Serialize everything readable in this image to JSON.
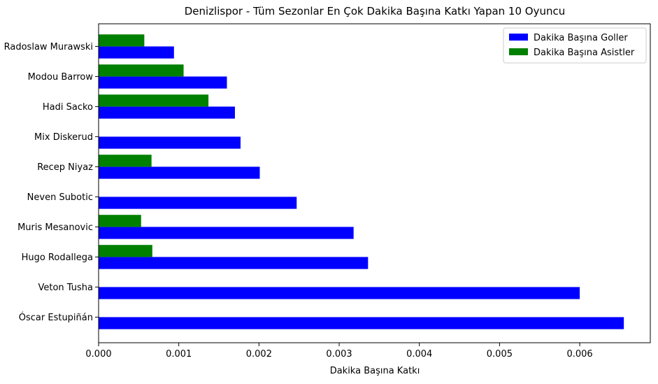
{
  "chart_data": {
    "type": "bar",
    "orientation": "horizontal",
    "title": "Denizlispor - Tüm Sezonlar En Çok Dakika Başına Katkı Yapan 10 Oyuncu",
    "xlabel": "Dakika Başına Katkı",
    "ylabel": "",
    "xlim": [
      0,
      0.00688
    ],
    "x_ticks": [
      "0.000",
      "0.001",
      "0.002",
      "0.003",
      "0.004",
      "0.005",
      "0.006"
    ],
    "categories": [
      "Óscar Estupiñán",
      "Veton Tusha",
      "Hugo Rodallega",
      "Muris Mesanovic",
      "Neven Subotic",
      "Recep Niyaz",
      "Mix Diskerud",
      "Hadi Sacko",
      "Modou Barrow",
      "Radoslaw Murawski"
    ],
    "series": [
      {
        "name": "Dakika Başına Goller",
        "color": "#0000ff",
        "values": [
          0.00655,
          0.006,
          0.00336,
          0.00318,
          0.00247,
          0.00201,
          0.00177,
          0.0017,
          0.0016,
          0.00094
        ]
      },
      {
        "name": "Dakika Başına Asistler",
        "color": "#008000",
        "values": [
          0,
          0,
          0.00067,
          0.00053,
          0,
          0.00066,
          0,
          0.00137,
          0.00106,
          0.00057
        ]
      }
    ],
    "legend_position": "top-right",
    "grid": false
  }
}
